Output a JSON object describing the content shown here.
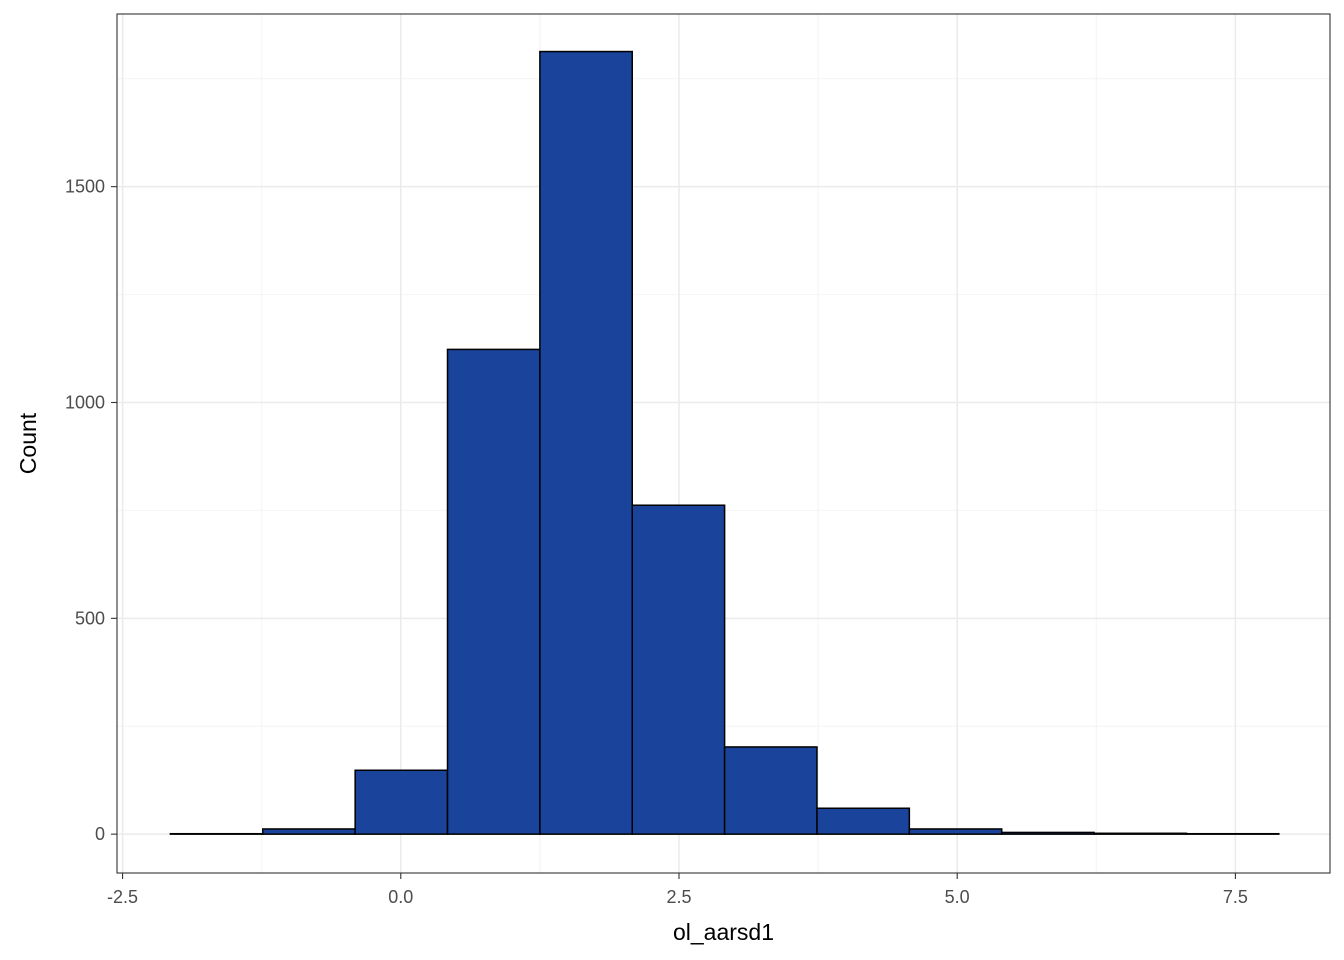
{
  "chart_data": {
    "type": "bar",
    "subtype": "histogram",
    "title": "",
    "xlabel": "ol_aarsd1",
    "ylabel": "Count",
    "xlim": [
      -2.55,
      8.35
    ],
    "ylim": [
      -90,
      1900
    ],
    "x_ticks": [
      {
        "value": -2.5,
        "label": "-2.5"
      },
      {
        "value": 0,
        "label": "0.0"
      },
      {
        "value": 2.5,
        "label": "2.5"
      },
      {
        "value": 5,
        "label": "5.0"
      },
      {
        "value": 7.5,
        "label": "7.5"
      }
    ],
    "y_ticks": [
      {
        "value": 0,
        "label": "0"
      },
      {
        "value": 500,
        "label": "500"
      },
      {
        "value": 1000,
        "label": "1000"
      },
      {
        "value": 1500,
        "label": "1500"
      }
    ],
    "bins": [
      {
        "x0": -2.07,
        "x1": -1.24,
        "count": 1
      },
      {
        "x0": -1.24,
        "x1": -0.41,
        "count": 12
      },
      {
        "x0": -0.41,
        "x1": 0.42,
        "count": 148
      },
      {
        "x0": 0.42,
        "x1": 1.25,
        "count": 1123
      },
      {
        "x0": 1.25,
        "x1": 2.08,
        "count": 1813
      },
      {
        "x0": 2.08,
        "x1": 2.91,
        "count": 762
      },
      {
        "x0": 2.91,
        "x1": 3.74,
        "count": 202
      },
      {
        "x0": 3.74,
        "x1": 4.57,
        "count": 60
      },
      {
        "x0": 4.57,
        "x1": 5.4,
        "count": 12
      },
      {
        "x0": 5.4,
        "x1": 6.23,
        "count": 4
      },
      {
        "x0": 6.23,
        "x1": 7.06,
        "count": 2
      },
      {
        "x0": 7.06,
        "x1": 7.89,
        "count": 1
      }
    ],
    "grid": true,
    "legend": "none",
    "colors": {
      "bar_fill": "#1a449b",
      "bar_stroke": "#000000",
      "grid_major": "#ebebeb",
      "grid_minor": "#f4f4f4",
      "panel_border": "#333333",
      "tick_label": "#4d4d4d"
    }
  }
}
